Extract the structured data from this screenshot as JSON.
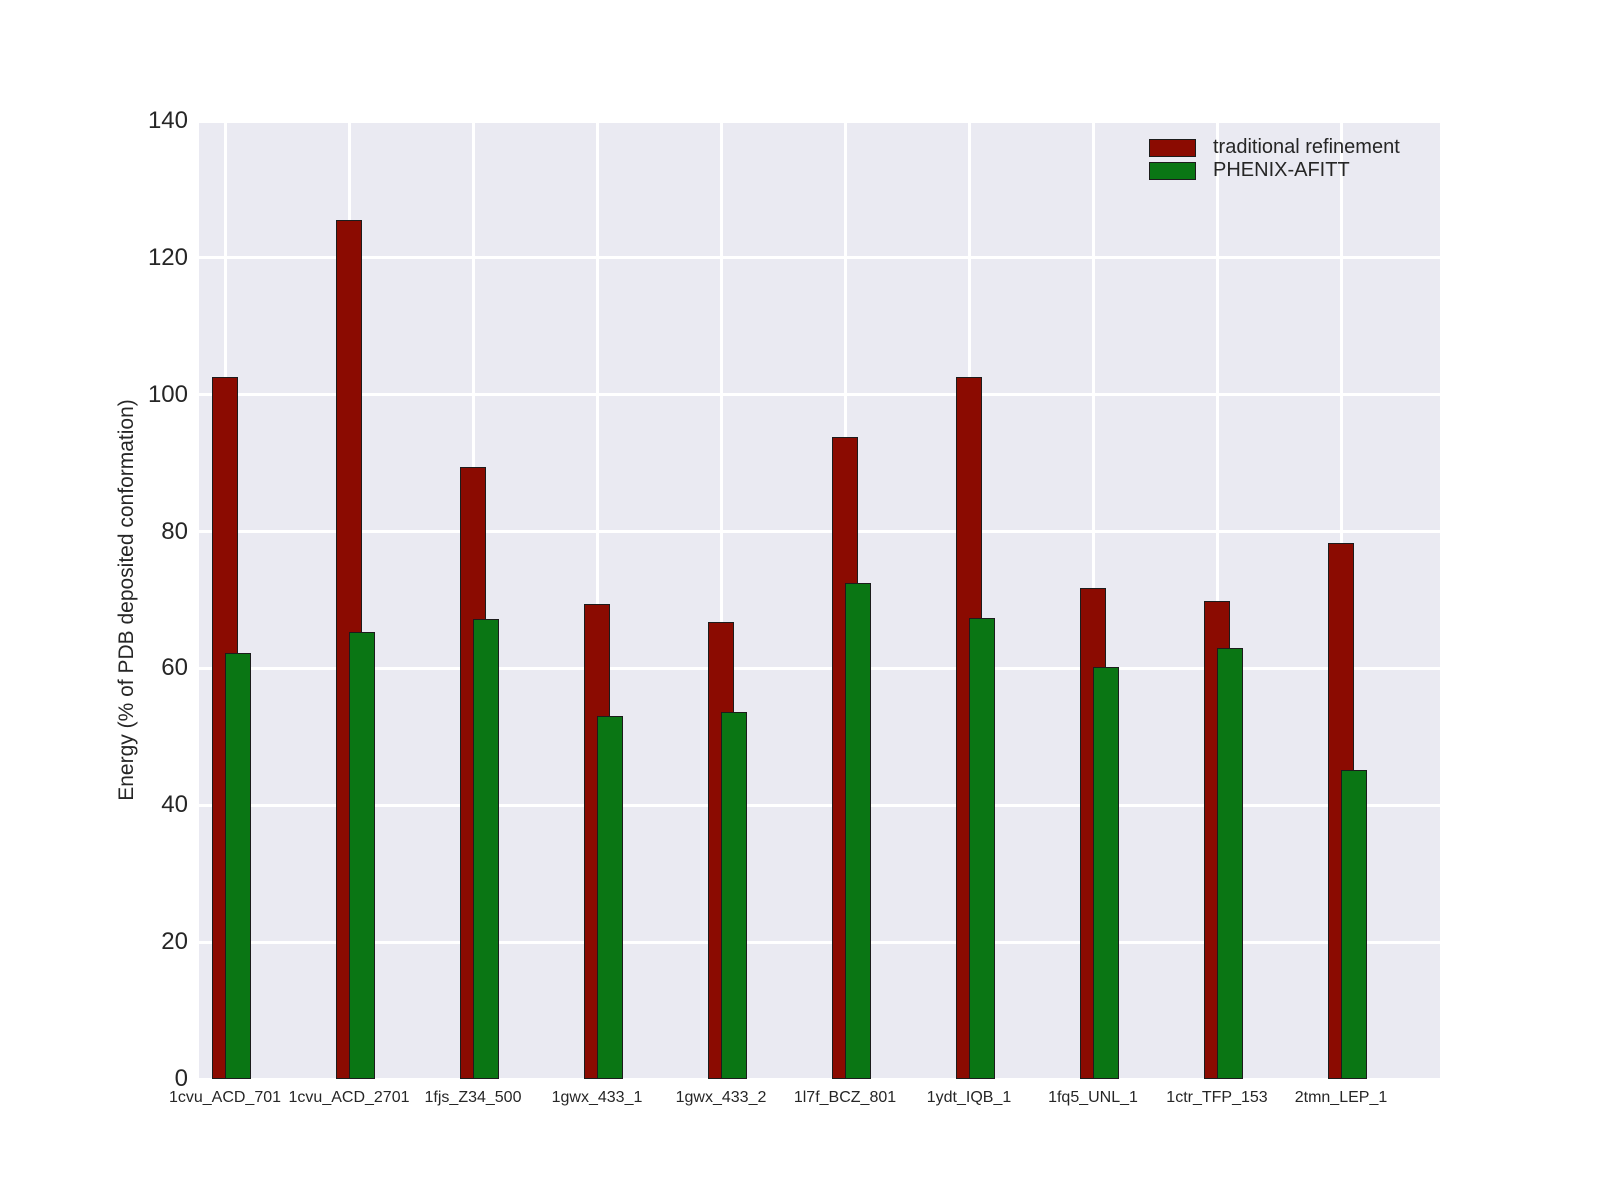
{
  "figure": {
    "background": "#ffffff",
    "plot_background": "#eaeaf2",
    "gridline_color": "#ffffff",
    "text_color": "#262626",
    "bar_edge_color": "#1c1c1c"
  },
  "chart_data": {
    "type": "bar",
    "title": "",
    "xlabel": "",
    "ylabel": "Energy (% of PDB deposited conformation)",
    "ylim": [
      0,
      140
    ],
    "yticks": [
      0,
      20,
      40,
      60,
      80,
      100,
      120,
      140
    ],
    "grid": true,
    "legend_position": "upper-right",
    "categories": [
      "1cvu_ACD_701",
      "1cvu_ACD_2701",
      "1fjs_Z34_500",
      "1gwx_433_1",
      "1gwx_433_2",
      "1l7f_BCZ_801",
      "1ydt_IQB_1",
      "1fq5_UNL_1",
      "1ctr_TFP_153",
      "2tmn_LEP_1"
    ],
    "series": [
      {
        "name": "traditional refinement",
        "color": "#8b0b01",
        "values": [
          102.6,
          125.6,
          89.4,
          69.4,
          66.8,
          93.8,
          102.6,
          71.7,
          69.9,
          78.3
        ]
      },
      {
        "name": "PHENIX-AFITT",
        "color": "#0a7614",
        "values": [
          62.3,
          65.3,
          67.2,
          53.0,
          53.6,
          72.5,
          67.4,
          60.2,
          63.0,
          45.2
        ]
      }
    ]
  }
}
